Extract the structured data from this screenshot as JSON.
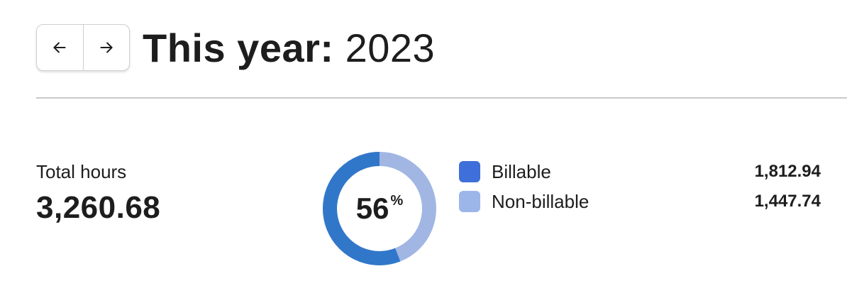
{
  "header": {
    "prev_icon": "arrow-left-icon",
    "next_icon": "arrow-right-icon",
    "title_prefix": "This year:",
    "title_year": "2023"
  },
  "summary": {
    "total_label": "Total hours",
    "total_value": "3,260.68"
  },
  "donut": {
    "percent": "56",
    "percent_sign": "%",
    "billable_fraction": 0.56
  },
  "legend": [
    {
      "label": "Billable",
      "value": "1,812.94",
      "color": "#3f6fd8"
    },
    {
      "label": "Non-billable",
      "value": "1,447.74",
      "color": "#9db6ea"
    }
  ],
  "colors": {
    "ring_billable": "#3177c9",
    "ring_non_billable": "#a1b6e3"
  }
}
